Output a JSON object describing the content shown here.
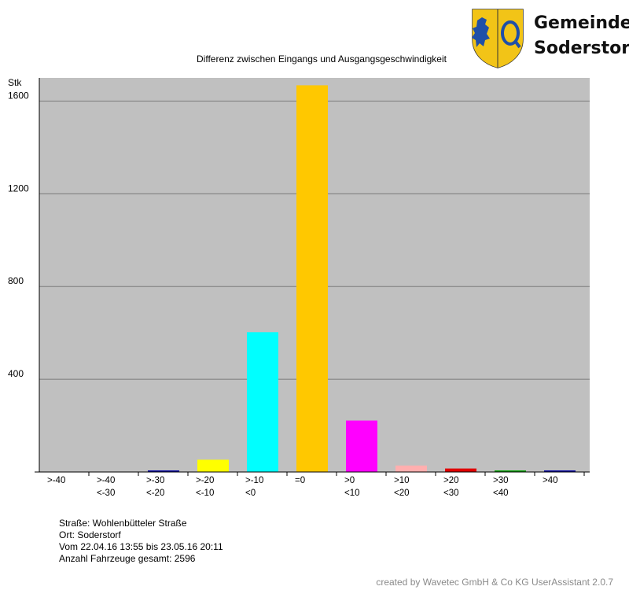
{
  "municipality": {
    "name_line1": "Gemeinde",
    "name_line2": "Soderstorf"
  },
  "chart_data": {
    "type": "bar",
    "title": "Differenz zwischen Eingangs und Ausgangsgeschwindigkeit",
    "ylabel": "Stk",
    "xlabel": "",
    "ylim": [
      0,
      1700
    ],
    "yticks": [
      400,
      800,
      1200,
      1600
    ],
    "grid": true,
    "background": "#c0c0c0",
    "categories": [
      [
        ">-40",
        ""
      ],
      [
        ">-40",
        "<-30"
      ],
      [
        ">-30",
        "<-20"
      ],
      [
        ">-20",
        "<-10"
      ],
      [
        ">-10",
        "<0"
      ],
      [
        "=0",
        ""
      ],
      [
        ">0",
        "<10"
      ],
      [
        ">10",
        "<20"
      ],
      [
        ">20",
        "<30"
      ],
      [
        ">30",
        "<40"
      ],
      [
        ">40",
        ""
      ]
    ],
    "values": [
      0,
      0,
      2,
      53,
      603,
      1668,
      222,
      28,
      15,
      4,
      2
    ],
    "colors": [
      "#000080",
      "#000080",
      "#0000a0",
      "#ffff00",
      "#00ffff",
      "#ffc800",
      "#ff00ff",
      "#ffafaf",
      "#e00000",
      "#00a000",
      "#0000a0"
    ]
  },
  "info": {
    "street": "Straße: Wohlenbütteler Straße",
    "place": "Ort: Soderstorf",
    "period": "Vom 22.04.16 13:55 bis 23.05.16 20:11",
    "total": "Anzahl Fahrzeuge gesamt: 2596"
  },
  "footer": {
    "credit": "created by Wavetec GmbH & Co KG UserAssistant 2.0.7"
  }
}
